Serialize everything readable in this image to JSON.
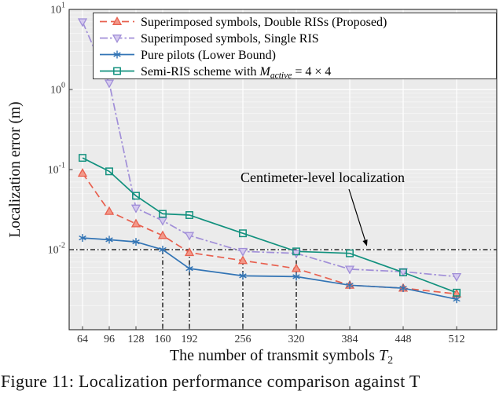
{
  "figure_caption": "Figure 11: Localization performance comparison against T",
  "chart_data": {
    "type": "line",
    "xlabel": {
      "prefix": "The number of transmit symbols ",
      "var": "T",
      "sub": "2"
    },
    "ylabel": "Localization error (m)",
    "x": [
      64,
      96,
      128,
      160,
      192,
      256,
      320,
      384,
      448,
      512
    ],
    "x_ticks": [
      64,
      96,
      128,
      160,
      192,
      256,
      320,
      384,
      448,
      512
    ],
    "xlim": [
      48,
      560
    ],
    "y_log_range": [
      -3,
      1
    ],
    "y_tick_exponents": [
      1,
      0,
      -1,
      -2
    ],
    "series": [
      {
        "label_parts": [
          {
            "text": "Superimposed symbols, Double RISs (Proposed)"
          }
        ],
        "color": "#e8604f",
        "marker_fill": "#f2998a",
        "dash": "dashed",
        "marker": "triangle-up",
        "values": [
          0.09,
          0.03,
          0.021,
          0.015,
          0.0092,
          0.0073,
          0.0058,
          0.0036,
          0.0033,
          0.0028
        ]
      },
      {
        "label_parts": [
          {
            "text": "Superimposed symbols, Single RIS"
          }
        ],
        "color": "#a18fd8",
        "marker_fill": "#d6cbef",
        "dash": "dashdot",
        "marker": "triangle-down",
        "values": [
          7.0,
          1.2,
          0.033,
          0.023,
          0.015,
          0.0095,
          0.009,
          0.0057,
          0.0053,
          0.0046
        ]
      },
      {
        "label_parts": [
          {
            "text": "Pure pilots (Lower Bound)"
          }
        ],
        "color": "#3274b5",
        "marker_fill": "none",
        "dash": "solid",
        "marker": "asterisk",
        "values": [
          0.014,
          0.0133,
          0.0125,
          0.01,
          0.0058,
          0.0047,
          0.0046,
          0.0036,
          0.0033,
          0.0024
        ]
      },
      {
        "label_parts": [
          {
            "text": "Semi-RIS scheme with "
          },
          {
            "text": "M",
            "italic": true
          },
          {
            "text": "active",
            "italic": true,
            "sub": true
          },
          {
            "text": " = 4 × 4"
          }
        ],
        "color": "#12917e",
        "marker_fill": "none",
        "dash": "solid",
        "marker": "square",
        "values": [
          0.14,
          0.095,
          0.047,
          0.028,
          0.027,
          0.016,
          0.0095,
          0.009,
          0.0052,
          0.0029
        ]
      }
    ],
    "reference_line": {
      "value": 0.01
    },
    "vertical_guides": [
      160,
      192,
      256,
      320
    ],
    "annotation": {
      "text": "Centimeter-level localization"
    },
    "colors": {
      "plot_bg": "#ebebeb",
      "grid_major": "#ffffff",
      "grid_minor": "#f6f6f6",
      "axis": "#262626",
      "guide": "#000000"
    }
  }
}
